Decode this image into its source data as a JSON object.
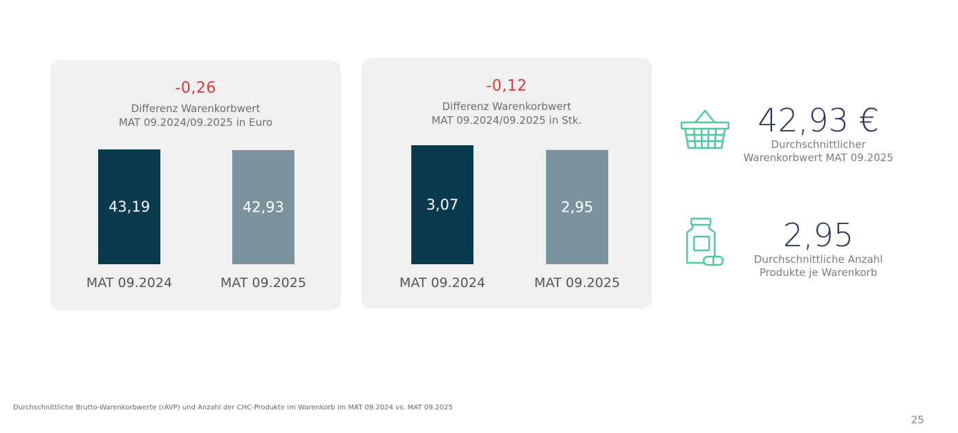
{
  "chart_data": [
    {
      "type": "bar",
      "title": "-0,26",
      "subtitle": [
        "Differenz Warenkorbwert",
        "MAT 09.2024/09.2025 in Euro"
      ],
      "categories": [
        "MAT 09.2024",
        "MAT 09.2025"
      ],
      "values": [
        43.19,
        42.93
      ],
      "value_labels": [
        "43,19",
        "42,93"
      ],
      "colors": [
        "#0b3a4e",
        "#7a939d"
      ]
    },
    {
      "type": "bar",
      "title": "-0,12",
      "subtitle": [
        "Differenz Warenkorbwert",
        "MAT 09.2024/09.2025 in Stk."
      ],
      "categories": [
        "MAT 09.2024",
        "MAT 09.2025"
      ],
      "values": [
        3.07,
        2.95
      ],
      "value_labels": [
        "3,07",
        "2,95"
      ],
      "colors": [
        "#0b3a4e",
        "#7a939d"
      ]
    }
  ],
  "kpis": [
    {
      "value": "42,93 €",
      "label": [
        "Durchschnittlicher",
        "Warenkorbwert MAT 09.2025"
      ],
      "icon": "shopping-basket-icon"
    },
    {
      "value": "2,95",
      "label": [
        "Durchschnittliche Anzahl",
        "Produkte je Warenkorb"
      ],
      "icon": "medicine-bottle-icon"
    }
  ],
  "colors": {
    "negative": "#d93a3a",
    "bar_prev": "#0b3a4e",
    "bar_curr": "#7a939d",
    "kpi_value": "#2a3560",
    "icon": "#4cc7a0",
    "panel_bg": "#f0f0f0"
  },
  "footnote": "Durchschnittliche Brutto-Warenkorbwerte (rAVP) und Anzahl der CHC-Produkte im Warenkorb im MAT 09.2024 vs. MAT 09.2025",
  "page_number": "25"
}
